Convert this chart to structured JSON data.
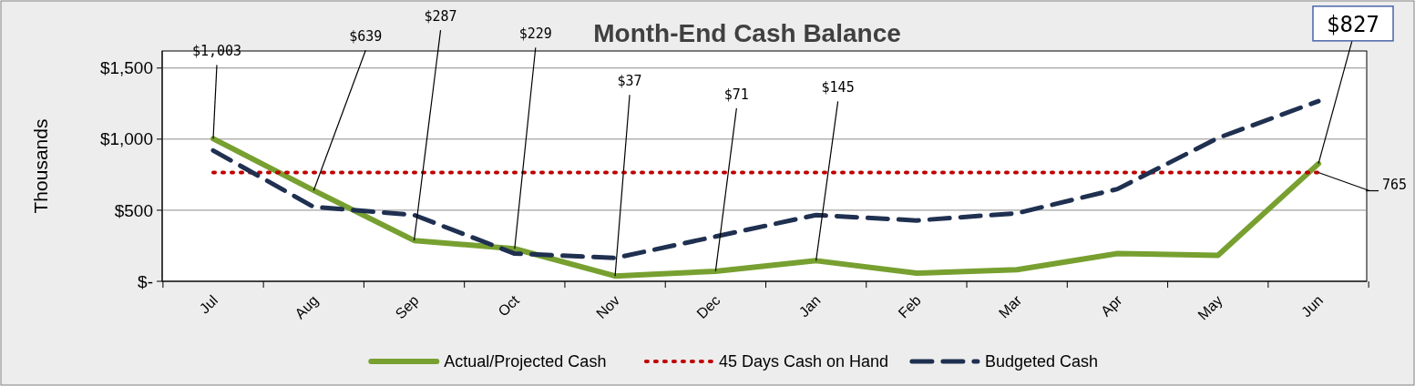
{
  "chart_data": {
    "type": "line",
    "title": "Month-End Cash Balance",
    "ylabel": "Thousands",
    "categories": [
      "Jul",
      "Aug",
      "Sep",
      "Oct",
      "Nov",
      "Dec",
      "Jan",
      "Feb",
      "Mar",
      "Apr",
      "May",
      "Jun"
    ],
    "series": [
      {
        "name": "Actual/Projected Cash",
        "color": "#77a030",
        "line_style": "solid",
        "values": [
          1003,
          639,
          287,
          229,
          37,
          71,
          145,
          57,
          82,
          195,
          183,
          827
        ],
        "value_labels": [
          "$1,003",
          "$639",
          "$287",
          "$229",
          "$37",
          "$71",
          "$145",
          null,
          null,
          null,
          null,
          "$827"
        ]
      },
      {
        "name": "45 Days Cash on Hand",
        "color": "#c00000",
        "line_style": "dotted",
        "values": [
          765,
          765,
          765,
          765,
          765,
          765,
          765,
          765,
          765,
          765,
          765,
          765
        ],
        "value_labels": [
          null,
          null,
          null,
          null,
          null,
          null,
          null,
          null,
          null,
          null,
          null,
          "765"
        ]
      },
      {
        "name": "Budgeted Cash",
        "color": "#1f3050",
        "line_style": "dashed",
        "values": [
          920,
          523,
          466,
          195,
          164,
          315,
          466,
          428,
          479,
          649,
          1008,
          1267
        ]
      }
    ],
    "ylim": [
      0,
      1620
    ],
    "yticks": [
      {
        "value": 0,
        "label": "$-"
      },
      {
        "value": 500,
        "label": "$500"
      },
      {
        "value": 1000,
        "label": "$1,000"
      },
      {
        "value": 1500,
        "label": "$1,500"
      }
    ],
    "grid": "y",
    "legend": "bottom",
    "marker": "none"
  }
}
